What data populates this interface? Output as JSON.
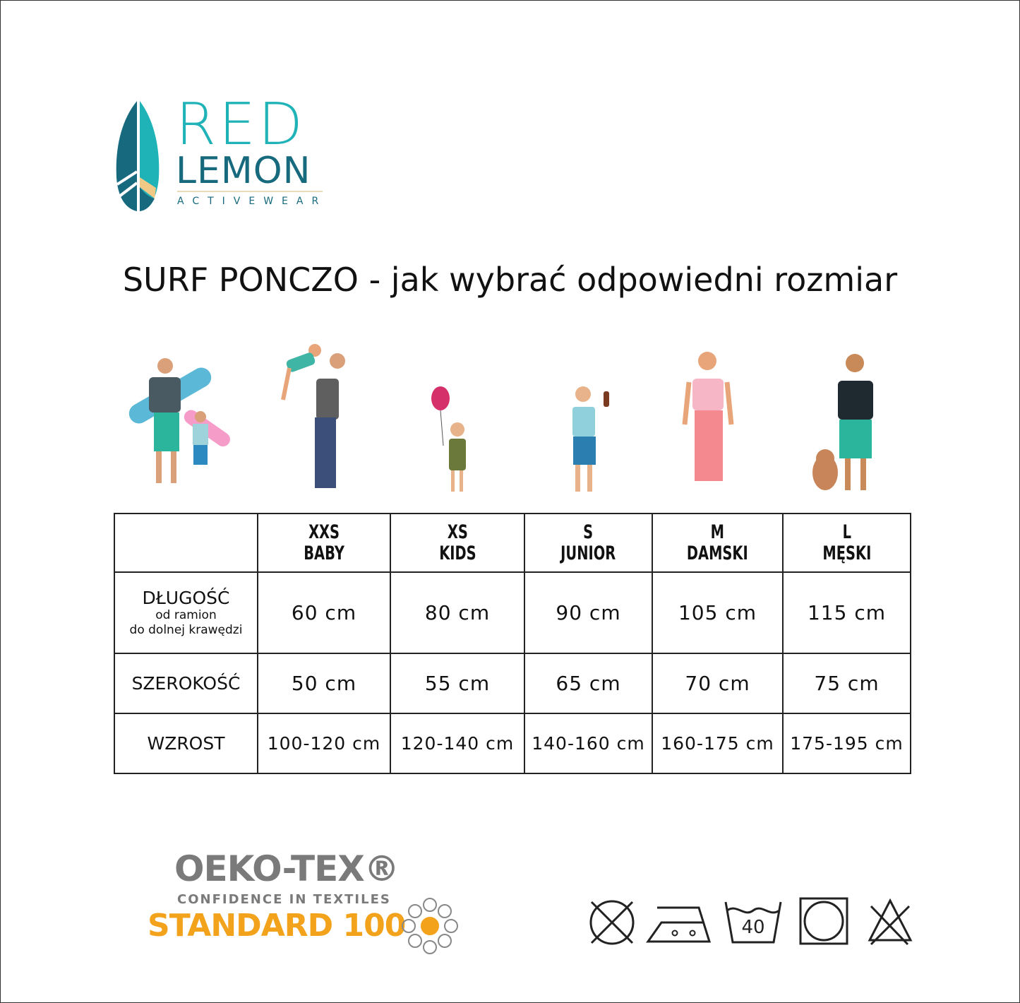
{
  "logo": {
    "line1": "RED",
    "line2": "LEMON",
    "line3": "ACTIVEWEAR",
    "colors": {
      "teal": "#1fb3b8",
      "dark_teal": "#176a7e",
      "sand": "#f0c987"
    }
  },
  "title": "SURF PONCZO - jak wybrać odpowiedni rozmiar",
  "table": {
    "columns": [
      {
        "size": "XXS",
        "name": "BABY"
      },
      {
        "size": "XS",
        "name": "KIDS"
      },
      {
        "size": "S",
        "name": "JUNIOR"
      },
      {
        "size": "M",
        "name": "DAMSKI"
      },
      {
        "size": "L",
        "name": "MĘSKI"
      }
    ],
    "rows": [
      {
        "label": "DŁUGOŚĆ",
        "sub1": "od ramion",
        "sub2": "do dolnej krawędzi",
        "values": [
          "60 cm",
          "80 cm",
          "90 cm",
          "105 cm",
          "115 cm"
        ]
      },
      {
        "label": "SZEROKOŚĆ",
        "values": [
          "50 cm",
          "55 cm",
          "65 cm",
          "70 cm",
          "75 cm"
        ]
      },
      {
        "label": "WZROST",
        "values": [
          "100-120 cm",
          "120-140 cm",
          "140-160 cm",
          "160-175 cm",
          "175-195 cm"
        ]
      }
    ]
  },
  "certificate": {
    "line1": "OEKO-TEX®",
    "line2": "CONFIDENCE IN TEXTILES",
    "line3": "STANDARD 100"
  },
  "care_icons": [
    "do-not-tumble-dry-icon",
    "iron-medium-icon",
    "wash-40-icon",
    "dry-clean-icon",
    "do-not-bleach-icon"
  ],
  "care": {
    "wash_temp": "40"
  }
}
